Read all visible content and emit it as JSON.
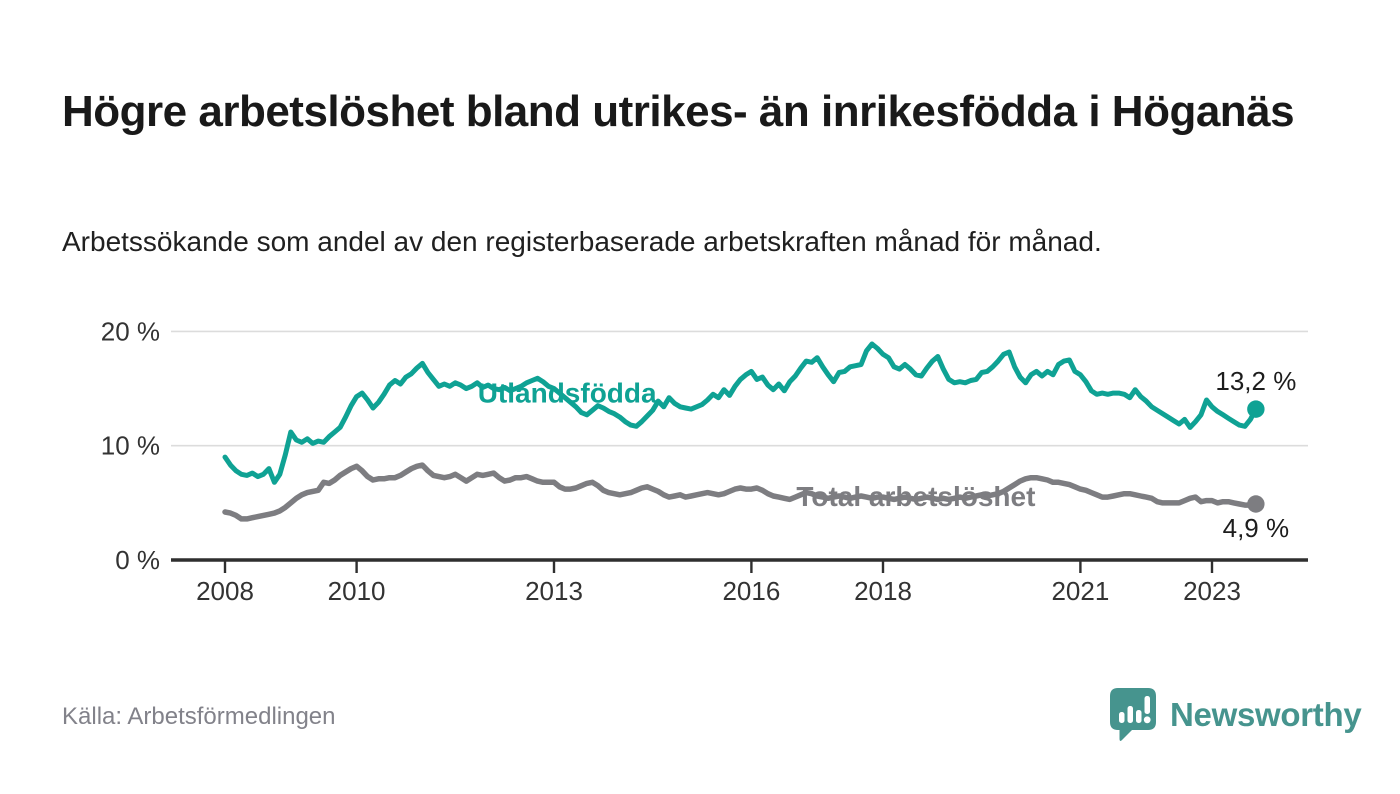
{
  "header": {
    "title": "Högre arbetslöshet bland utrikes- än inrikesfödda i Höganäs",
    "subtitle": "Arbetssökande som andel av den registerbaserade arbetskraften månad för månad."
  },
  "chart_data": {
    "type": "line",
    "unit": "%",
    "x_start_year": 2008,
    "x_step_months": 1,
    "x_end": "2023-09",
    "xticks": [
      2008,
      2010,
      2013,
      2016,
      2018,
      2021,
      2023
    ],
    "xtick_labels": [
      "2008",
      "2010",
      "2013",
      "2016",
      "2018",
      "2021",
      "2023"
    ],
    "yticks": [
      0,
      10,
      20
    ],
    "ytick_labels": [
      "0 %",
      "10 %",
      "20 %"
    ],
    "ylim": [
      0,
      21
    ],
    "grid": "horizontal",
    "legend_position": "inline-labels",
    "series": [
      {
        "name": "Total arbetslöshet",
        "color": "#7d7d81",
        "line_width": 5.5,
        "end_label": "4,9 %",
        "last_value": 4.9,
        "label_pos": {
          "year": 2018.5,
          "value": 5.5
        },
        "end_label_dy": 33,
        "values": [
          4.2,
          4.1,
          3.9,
          3.6,
          3.6,
          3.7,
          3.8,
          3.9,
          4.0,
          4.1,
          4.3,
          4.6,
          5.0,
          5.4,
          5.7,
          5.9,
          6.0,
          6.1,
          6.8,
          6.7,
          7.0,
          7.4,
          7.7,
          8.0,
          8.2,
          7.8,
          7.3,
          7.0,
          7.1,
          7.1,
          7.2,
          7.2,
          7.4,
          7.7,
          8.0,
          8.2,
          8.3,
          7.8,
          7.4,
          7.3,
          7.2,
          7.3,
          7.5,
          7.2,
          6.9,
          7.2,
          7.5,
          7.4,
          7.5,
          7.6,
          7.2,
          6.9,
          7.0,
          7.2,
          7.2,
          7.3,
          7.1,
          6.9,
          6.8,
          6.8,
          6.8,
          6.4,
          6.2,
          6.2,
          6.3,
          6.5,
          6.7,
          6.8,
          6.5,
          6.1,
          5.9,
          5.8,
          5.7,
          5.8,
          5.9,
          6.1,
          6.3,
          6.4,
          6.2,
          6.0,
          5.7,
          5.5,
          5.6,
          5.7,
          5.5,
          5.6,
          5.7,
          5.8,
          5.9,
          5.8,
          5.7,
          5.8,
          6.0,
          6.2,
          6.3,
          6.2,
          6.2,
          6.3,
          6.1,
          5.8,
          5.6,
          5.5,
          5.4,
          5.3,
          5.5,
          5.7,
          5.9,
          5.8,
          5.6,
          5.5,
          5.4,
          5.5,
          5.6,
          5.5,
          5.4,
          5.5,
          5.6,
          5.5,
          5.4,
          5.5,
          5.5,
          5.4,
          5.3,
          5.4,
          5.5,
          5.4,
          5.3,
          5.4,
          5.5,
          5.4,
          5.3,
          5.4,
          5.3,
          5.4,
          5.5,
          5.4,
          5.5,
          5.6,
          5.7,
          5.6,
          5.7,
          5.8,
          6.0,
          6.3,
          6.6,
          6.9,
          7.1,
          7.2,
          7.2,
          7.1,
          7.0,
          6.8,
          6.8,
          6.7,
          6.6,
          6.4,
          6.2,
          6.1,
          5.9,
          5.7,
          5.5,
          5.5,
          5.6,
          5.7,
          5.8,
          5.8,
          5.7,
          5.6,
          5.5,
          5.4,
          5.1,
          5.0,
          5.0,
          5.0,
          5.0,
          5.2,
          5.4,
          5.5,
          5.1,
          5.2,
          5.2,
          5.0,
          5.1,
          5.1,
          5.0,
          4.9,
          4.8,
          4.8,
          4.9
        ]
      },
      {
        "name": "Utlandsfödda",
        "color": "#0fa294",
        "line_width": 5,
        "end_label": "13,2 %",
        "last_value": 13.2,
        "label_pos": {
          "year": 2013.2,
          "value": 14.55
        },
        "end_label_dy": -19,
        "values": [
          9.0,
          8.3,
          7.8,
          7.5,
          7.4,
          7.6,
          7.3,
          7.5,
          8.0,
          6.8,
          7.5,
          9.2,
          11.2,
          10.5,
          10.3,
          10.6,
          10.2,
          10.4,
          10.3,
          10.8,
          11.2,
          11.6,
          12.5,
          13.5,
          14.3,
          14.6,
          14.0,
          13.3,
          13.8,
          14.5,
          15.3,
          15.7,
          15.4,
          16.0,
          16.3,
          16.8,
          17.2,
          16.4,
          15.8,
          15.2,
          15.4,
          15.2,
          15.5,
          15.3,
          15.0,
          15.2,
          15.5,
          15.1,
          15.3,
          15.0,
          14.9,
          15.1,
          14.8,
          15.0,
          15.2,
          15.5,
          15.7,
          15.9,
          15.6,
          15.2,
          15.0,
          14.6,
          14.2,
          13.8,
          13.4,
          12.9,
          12.7,
          13.1,
          13.5,
          13.3,
          13.0,
          12.8,
          12.5,
          12.1,
          11.8,
          11.7,
          12.1,
          12.6,
          13.1,
          13.9,
          13.4,
          14.2,
          13.7,
          13.4,
          13.3,
          13.2,
          13.4,
          13.6,
          14.0,
          14.5,
          14.2,
          14.9,
          14.4,
          15.2,
          15.8,
          16.2,
          16.5,
          15.8,
          16.0,
          15.3,
          14.9,
          15.4,
          14.8,
          15.6,
          16.1,
          16.8,
          17.4,
          17.3,
          17.7,
          16.9,
          16.2,
          15.6,
          16.4,
          16.5,
          16.9,
          17.0,
          17.1,
          18.3,
          18.9,
          18.5,
          18.0,
          17.7,
          16.9,
          16.7,
          17.1,
          16.7,
          16.2,
          16.1,
          16.8,
          17.4,
          17.8,
          16.7,
          15.8,
          15.5,
          15.6,
          15.5,
          15.7,
          15.8,
          16.4,
          16.5,
          16.9,
          17.4,
          18.0,
          18.2,
          16.9,
          16.0,
          15.5,
          16.2,
          16.5,
          16.1,
          16.5,
          16.2,
          17.1,
          17.4,
          17.5,
          16.5,
          16.2,
          15.6,
          14.8,
          14.5,
          14.6,
          14.5,
          14.6,
          14.6,
          14.5,
          14.2,
          14.9,
          14.3,
          13.9,
          13.4,
          13.1,
          12.8,
          12.5,
          12.2,
          11.9,
          12.3,
          11.6,
          12.1,
          12.7,
          14.0,
          13.4,
          13.0,
          12.7,
          12.4,
          12.1,
          11.8,
          11.7,
          12.3,
          13.2
        ]
      }
    ]
  },
  "footer": {
    "source": "Källa: Arbetsförmedlingen",
    "brand": "Newsworthy",
    "brand_color": "#46948e"
  }
}
